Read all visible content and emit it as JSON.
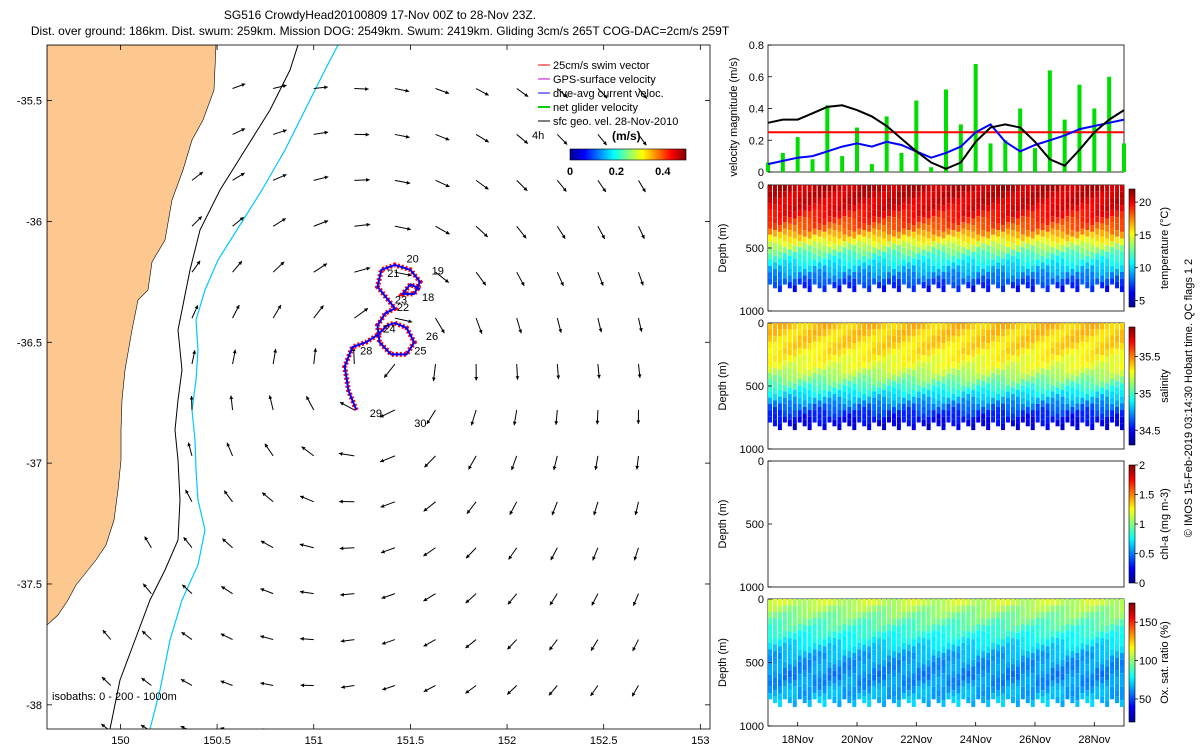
{
  "title_line1": "SG516 CrowdyHead20100809 17-Nov 00Z to 28-Nov 23Z.",
  "title_line2": "Dist. over ground: 186km. Dist. swum: 259km. Mission DOG: 2549km. Swum: 2419km. Gliding 3cm/s 265T COG-DAC=2cm/s 259T",
  "chart_data": [
    {
      "type": "scatter",
      "name": "map",
      "xlim": [
        149.62,
        153.05
      ],
      "ylim": [
        -38.1,
        -35.27
      ],
      "x_ticks": [
        "150",
        "150.5",
        "151",
        "151.5",
        "152",
        "152.5",
        "153"
      ],
      "y_ticks": [
        "-35.5",
        "-36",
        "-36.5",
        "-37",
        "-37.5",
        "-38"
      ],
      "x_tick_values": [
        150,
        150.5,
        151,
        151.5,
        152,
        152.5,
        153
      ],
      "y_tick_values": [
        -35.5,
        -36,
        -36.5,
        -37,
        -37.5,
        -38
      ],
      "legend": [
        {
          "label": "25cm/s swim vector",
          "color": "#ff0000"
        },
        {
          "label": "GPS-surface velocity",
          "color": "#cc00cc"
        },
        {
          "label": "dive-avg current veloc.",
          "color": "#0000ff"
        },
        {
          "label": "net glider velocity",
          "color": "#00cc00"
        },
        {
          "label": "sfc geo. vel. 28-Nov-2010",
          "color": "#000000"
        }
      ],
      "colorbar_label": "(m/s)",
      "colorbar_ticks": [
        "0",
        "0.2",
        "0.4"
      ],
      "colorbar_range": [
        0,
        0.5
      ],
      "time_label": "4h",
      "isobaths_label": "isobaths: 0 - 200 - 1000m",
      "track_day_labels": [
        {
          "label": "18",
          "lon": 151.56,
          "lat": -36.33
        },
        {
          "label": "19",
          "lon": 151.61,
          "lat": -36.22
        },
        {
          "label": "20",
          "lon": 151.48,
          "lat": -36.17
        },
        {
          "label": "21",
          "lon": 151.38,
          "lat": -36.23
        },
        {
          "label": "22",
          "lon": 151.43,
          "lat": -36.37
        },
        {
          "label": "23",
          "lon": 151.42,
          "lat": -36.34
        },
        {
          "label": "24",
          "lon": 151.36,
          "lat": -36.46
        },
        {
          "label": "25",
          "lon": 151.52,
          "lat": -36.55
        },
        {
          "label": "26",
          "lon": 151.58,
          "lat": -36.49
        },
        {
          "label": "28",
          "lon": 151.24,
          "lat": -36.55
        },
        {
          "label": "29",
          "lon": 151.29,
          "lat": -36.81
        },
        {
          "label": "30",
          "lon": 151.52,
          "lat": -36.85
        }
      ]
    },
    {
      "type": "line",
      "name": "velocity",
      "ylabel": "velocity magnitude (m/s)",
      "ylim": [
        0,
        0.8
      ],
      "y_ticks": [
        "0",
        "0.2",
        "0.4",
        "0.6",
        "0.8"
      ],
      "y_tick_values": [
        0,
        0.2,
        0.4,
        0.6,
        0.8
      ],
      "series": [
        {
          "name": "25cm/s swim",
          "color": "#ff0000",
          "x": [
            17,
            29
          ],
          "y": [
            0.25,
            0.25
          ]
        },
        {
          "name": "dive-avg current",
          "color": "#0000ff",
          "x": [
            17,
            17.5,
            18,
            18.5,
            19,
            19.5,
            20,
            20.5,
            21,
            21.5,
            22,
            22.5,
            23,
            23.5,
            24,
            24.5,
            25,
            25.5,
            26,
            26.5,
            27,
            27.5,
            28,
            28.5,
            29
          ],
          "y": [
            0.05,
            0.07,
            0.09,
            0.1,
            0.13,
            0.16,
            0.18,
            0.16,
            0.19,
            0.17,
            0.13,
            0.09,
            0.12,
            0.16,
            0.25,
            0.3,
            0.19,
            0.13,
            0.17,
            0.2,
            0.23,
            0.27,
            0.29,
            0.31,
            0.33
          ]
        },
        {
          "name": "sfc geo vel",
          "color": "#000000",
          "x": [
            17,
            17.5,
            18,
            18.5,
            19,
            19.5,
            20,
            20.5,
            21,
            21.5,
            22,
            22.5,
            23,
            23.5,
            24,
            24.5,
            25,
            25.5,
            26,
            26.5,
            27,
            27.5,
            28,
            28.5,
            29
          ],
          "y": [
            0.31,
            0.33,
            0.33,
            0.37,
            0.41,
            0.42,
            0.39,
            0.35,
            0.29,
            0.21,
            0.13,
            0.06,
            0.02,
            0.06,
            0.19,
            0.28,
            0.3,
            0.28,
            0.19,
            0.08,
            0.04,
            0.14,
            0.25,
            0.33,
            0.39
          ]
        },
        {
          "name": "net glider",
          "color": "#00dd00",
          "x": [
            17,
            17.5,
            18,
            18.5,
            19,
            19.5,
            20,
            20.5,
            21,
            21.5,
            22,
            22.5,
            23,
            23.5,
            24,
            24.5,
            25,
            25.5,
            26,
            26.5,
            27,
            27.5,
            28,
            28.5,
            29
          ],
          "y": [
            0.06,
            0.12,
            0.22,
            0.08,
            0.42,
            0.1,
            0.28,
            0.05,
            0.35,
            0.12,
            0.45,
            0.03,
            0.52,
            0.3,
            0.68,
            0.18,
            0.2,
            0.4,
            0.15,
            0.64,
            0.33,
            0.55,
            0.4,
            0.6,
            0.18
          ]
        }
      ]
    },
    {
      "type": "heatmap",
      "name": "temperature",
      "ylabel": "Depth (m)",
      "cbar_label": "temperature (°C)",
      "ylim": [
        1000,
        0
      ],
      "y_ticks": [
        "0",
        "500",
        "1000"
      ],
      "y_tick_values": [
        0,
        500,
        1000
      ],
      "cbar_range": [
        4,
        22
      ],
      "cbar_ticks": [
        "5",
        "10",
        "15",
        "20"
      ],
      "cbar_tick_values": [
        5,
        10,
        15,
        20
      ],
      "profile_depth_levels": [
        0,
        200,
        350,
        450,
        550,
        700,
        850
      ],
      "profile_values": [
        21,
        20,
        18,
        15,
        12,
        9,
        6
      ],
      "max_depth": 850
    },
    {
      "type": "heatmap",
      "name": "salinity",
      "ylabel": "Depth (m)",
      "cbar_label": "salinity",
      "ylim": [
        1000,
        0
      ],
      "y_ticks": [
        "0",
        "500",
        "1000"
      ],
      "y_tick_values": [
        0,
        500,
        1000
      ],
      "cbar_range": [
        34.3,
        35.9
      ],
      "cbar_ticks": [
        "34.5",
        "35",
        "35.5"
      ],
      "cbar_tick_values": [
        34.5,
        35,
        35.5
      ],
      "profile_depth_levels": [
        0,
        200,
        350,
        450,
        550,
        700,
        850
      ],
      "profile_values": [
        35.4,
        35.35,
        35.25,
        35.1,
        34.9,
        34.6,
        34.4
      ],
      "max_depth": 850
    },
    {
      "type": "heatmap",
      "name": "chl-a",
      "ylabel": "Depth (m)",
      "cbar_label": "chl-a (mg m-3)",
      "ylim": [
        1000,
        0
      ],
      "y_ticks": [
        "0",
        "500",
        "1000"
      ],
      "y_tick_values": [
        0,
        500,
        1000
      ],
      "cbar_range": [
        0,
        2
      ],
      "cbar_ticks": [
        "0",
        "0.5",
        "1",
        "1.5",
        "2"
      ],
      "cbar_tick_values": [
        0,
        0.5,
        1,
        1.5,
        2
      ],
      "profile_depth_levels": [],
      "profile_values": [],
      "max_depth": 0
    },
    {
      "type": "heatmap",
      "name": "oxygen",
      "ylabel": "Depth (m)",
      "cbar_label": "Ox. sat. ratio (%)",
      "ylim": [
        1000,
        0
      ],
      "y_ticks": [
        "0",
        "500",
        "1000"
      ],
      "y_tick_values": [
        0,
        500,
        1000
      ],
      "cbar_range": [
        20,
        175
      ],
      "cbar_ticks": [
        "50",
        "100",
        "150"
      ],
      "cbar_tick_values": [
        50,
        100,
        150
      ],
      "profile_depth_levels": [
        0,
        150,
        300,
        450,
        600,
        850
      ],
      "profile_values": [
        110,
        95,
        80,
        65,
        60,
        70
      ],
      "max_depth": 850
    }
  ],
  "x_time_ticks": [
    "18Nov",
    "20Nov",
    "22Nov",
    "24Nov",
    "26Nov",
    "28Nov"
  ],
  "x_time_values": [
    18,
    20,
    22,
    24,
    26,
    28
  ],
  "x_time_range": [
    17,
    29
  ],
  "side_label": "© IMOS 15-Feb-2019 03:14:30 Hobart time. QC flags 1 2"
}
